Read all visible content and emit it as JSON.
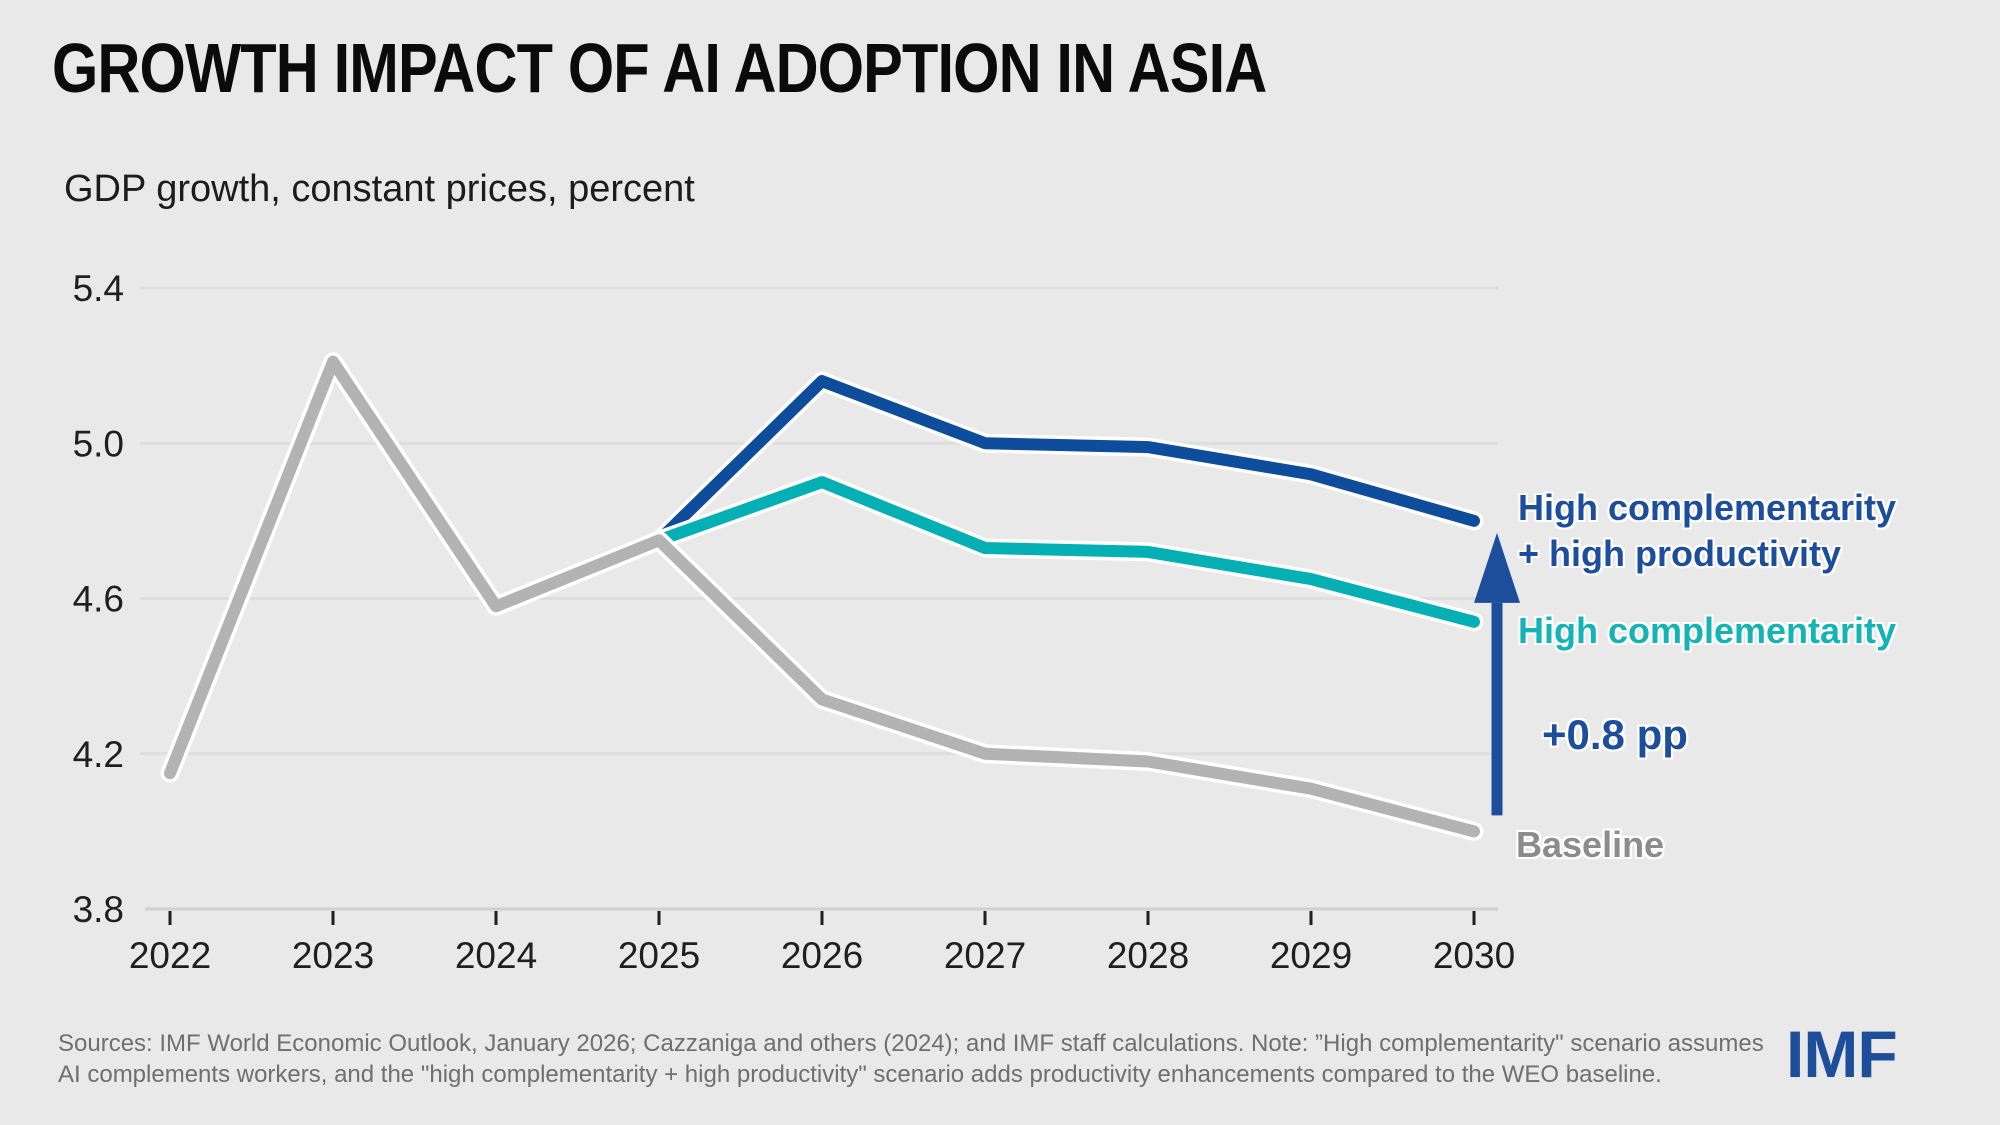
{
  "header": {
    "title": "GROWTH IMPACT OF AI ADOPTION IN ASIA",
    "subtitle": "GDP growth, constant prices, percent"
  },
  "chart_data": {
    "type": "line",
    "x": [
      2022,
      2023,
      2024,
      2025,
      2026,
      2027,
      2028,
      2029,
      2030
    ],
    "series": [
      {
        "name": "Baseline",
        "color": "#b3b3b3",
        "values": [
          4.15,
          5.21,
          4.58,
          4.75,
          4.34,
          4.2,
          4.18,
          4.11,
          4.0
        ]
      },
      {
        "name": "High complementarity",
        "color": "#04b0b4",
        "values": [
          null,
          null,
          null,
          4.75,
          4.9,
          4.73,
          4.72,
          4.65,
          4.54
        ]
      },
      {
        "name": "High complementarity + high productivity",
        "color": "#0e4c9c",
        "values": [
          null,
          null,
          null,
          4.75,
          5.16,
          5.0,
          4.99,
          4.92,
          4.8
        ]
      }
    ],
    "title": "GROWTH IMPACT OF AI ADOPTION IN ASIA",
    "subtitle_as_ylabel": "GDP growth, constant prices, percent",
    "xlabel": "",
    "ylabel": "",
    "ylim": [
      3.8,
      5.4
    ],
    "y_ticks": [
      3.8,
      4.2,
      4.6,
      5.0,
      5.4
    ],
    "grid": "horizontal",
    "legend_position": "right-direct-labels"
  },
  "annotations": {
    "scenario_hchp_line1": "High complementarity",
    "scenario_hchp_line2": "+ high productivity",
    "scenario_hc": "High complementarity",
    "delta_label": "+0.8 pp",
    "baseline_label": "Baseline"
  },
  "colors": {
    "background": "#e9e9e9",
    "gridline": "#dedede",
    "axis_line": "#cfcfcf",
    "axis_text": "#1f1f1f",
    "baseline_line": "#b3b3b3",
    "baseline_label": "#8c8c8c",
    "hc_line": "#04b0b4",
    "hc_label": "#14b3b6",
    "hchp_line": "#0e4c9c",
    "hchp_label": "#1d4e9b",
    "arrow": "#1d4e9b",
    "footer_text": "#6f6f6f",
    "imf_logo": "#1d4e9b"
  },
  "footer": {
    "source_line1": "Sources: IMF World Economic Outlook, January 2026; Cazzaniga and others (2024); and IMF staff calculations. Note: ”High complementarity\" scenario assumes",
    "source_line2": "AI complements workers, and the \"high complementarity + high productivity\" scenario adds productivity enhancements compared to the WEO baseline.",
    "logo": "IMF"
  }
}
